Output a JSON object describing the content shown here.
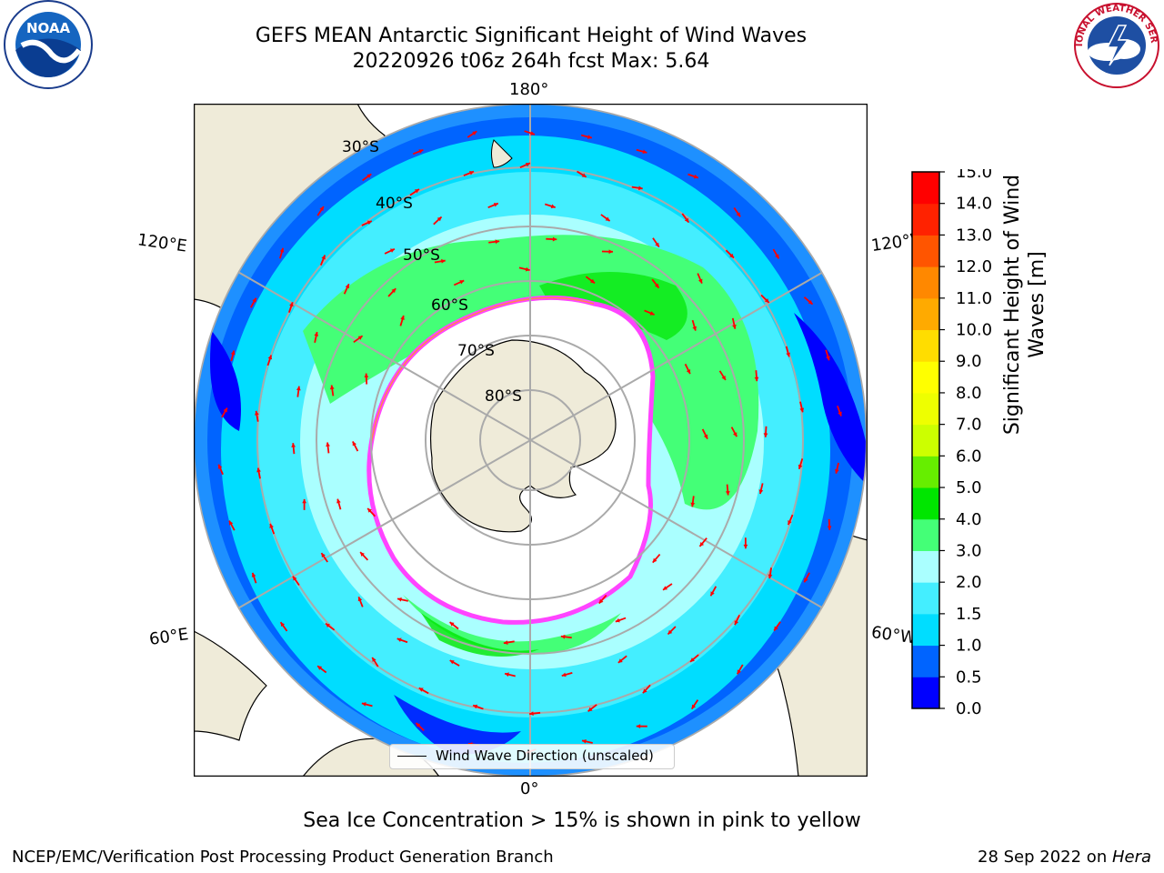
{
  "title": {
    "line1": "GEFS MEAN Antarctic Significant Height of Wind Waves",
    "line2": "20220926 t06z 264h fcst   Max: 5.64"
  },
  "map": {
    "projection": "south-polar-stereographic",
    "longitude_labels": {
      "top": "180°",
      "bottom": "0°",
      "left_upper": "120°E",
      "left_lower": "60°E",
      "right_upper": "120°W",
      "right_lower": "60°W"
    },
    "latitude_labels": [
      "30°S",
      "40°S",
      "50°S",
      "60°S",
      "70°S",
      "80°S"
    ],
    "legend": "Wind Wave Direction (unscaled)",
    "arrow_color": "#ff0000",
    "land_color": "#efebd9",
    "ice_edge_colors": [
      "#ff44ff",
      "#ffa500",
      "#ffff66"
    ]
  },
  "colorbar": {
    "label_line1": "Significant Height of Wind",
    "label_line2": "Waves [m]",
    "ticks": [
      "0.0",
      "0.5",
      "1.0",
      "1.5",
      "2.0",
      "3.0",
      "4.0",
      "5.0",
      "6.0",
      "7.0",
      "8.0",
      "9.0",
      "10.0",
      "11.0",
      "12.0",
      "13.0",
      "14.0",
      "15.0"
    ],
    "colors": [
      "#0000ff",
      "#0064ff",
      "#00ddff",
      "#44eeff",
      "#aaffff",
      "#44ff77",
      "#00e600",
      "#66ee00",
      "#ccff00",
      "#eeff00",
      "#ffff00",
      "#ffdd00",
      "#ffaa00",
      "#ff8800",
      "#ff5500",
      "#ff2200",
      "#ff0000"
    ]
  },
  "logos": {
    "noaa_text": "NOAA",
    "nws_text": "NATIONAL WEATHER SERVICE"
  },
  "footer": {
    "note": "Sea Ice Concentration > 15% is shown in pink to yellow",
    "left": "NCEP/EMC/Verification Post Processing Product Generation Branch",
    "right_date": "28 Sep 2022 on ",
    "right_host": "Hera"
  }
}
